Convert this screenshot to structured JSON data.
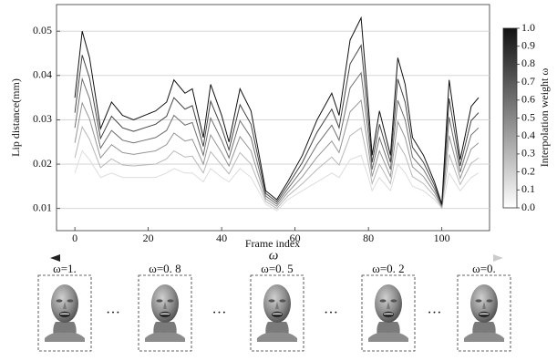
{
  "chart_data": {
    "type": "line",
    "x_label": "Frame index",
    "y_label": "Lip distance(mm)",
    "x": [
      0,
      2,
      4,
      7,
      10,
      13,
      16,
      19,
      22,
      25,
      27,
      30,
      32,
      35,
      37,
      40,
      42,
      45,
      48,
      52,
      55,
      58,
      62,
      66,
      70,
      72,
      75,
      78,
      80,
      81,
      83,
      86,
      88,
      90,
      92,
      95,
      98,
      100,
      102,
      105,
      108,
      110
    ],
    "series": [
      {
        "color": "#dcdcdc",
        "values": [
          0.018,
          0.023,
          0.021,
          0.017,
          0.018,
          0.017,
          0.017,
          0.017,
          0.017,
          0.018,
          0.019,
          0.018,
          0.018,
          0.016,
          0.019,
          0.017,
          0.016,
          0.019,
          0.017,
          0.011,
          0.0095,
          0.012,
          0.014,
          0.016,
          0.018,
          0.017,
          0.021,
          0.022,
          0.017,
          0.014,
          0.017,
          0.014,
          0.02,
          0.018,
          0.015,
          0.014,
          0.012,
          0.01,
          0.018,
          0.014,
          0.017,
          0.018
        ]
      },
      {
        "color": "#b8b8b8",
        "values": [
          0.0214,
          0.0284,
          0.0256,
          0.0192,
          0.0212,
          0.0198,
          0.0196,
          0.0198,
          0.02,
          0.0212,
          0.023,
          0.0216,
          0.0218,
          0.018,
          0.0228,
          0.0198,
          0.0178,
          0.0226,
          0.02,
          0.0116,
          0.01,
          0.0128,
          0.0156,
          0.0188,
          0.0216,
          0.0198,
          0.0264,
          0.0282,
          0.0202,
          0.0156,
          0.02,
          0.0156,
          0.0248,
          0.022,
          0.0172,
          0.0156,
          0.0128,
          0.0102,
          0.0222,
          0.0154,
          0.0202,
          0.0214
        ]
      },
      {
        "color": "#959595",
        "values": [
          0.0248,
          0.0338,
          0.0302,
          0.0214,
          0.0244,
          0.0226,
          0.0222,
          0.0226,
          0.023,
          0.0244,
          0.027,
          0.0252,
          0.0256,
          0.02,
          0.0266,
          0.0226,
          0.0196,
          0.0262,
          0.023,
          0.0122,
          0.0105,
          0.0136,
          0.0172,
          0.0216,
          0.0252,
          0.0226,
          0.0318,
          0.0344,
          0.0234,
          0.0172,
          0.023,
          0.0172,
          0.0296,
          0.026,
          0.0194,
          0.0172,
          0.0136,
          0.0104,
          0.0264,
          0.0168,
          0.0234,
          0.0248
        ]
      },
      {
        "color": "#6e6e6e",
        "values": [
          0.0282,
          0.0392,
          0.0348,
          0.0236,
          0.0276,
          0.0254,
          0.0248,
          0.0254,
          0.026,
          0.0276,
          0.031,
          0.0288,
          0.0294,
          0.022,
          0.0304,
          0.0254,
          0.0214,
          0.0298,
          0.026,
          0.0128,
          0.011,
          0.0144,
          0.0188,
          0.0244,
          0.0288,
          0.0254,
          0.0372,
          0.0406,
          0.0266,
          0.0188,
          0.026,
          0.0188,
          0.0344,
          0.03,
          0.0216,
          0.0188,
          0.0144,
          0.0106,
          0.0306,
          0.0182,
          0.0266,
          0.0282
        ]
      },
      {
        "color": "#444444",
        "values": [
          0.0316,
          0.0446,
          0.0394,
          0.0258,
          0.0308,
          0.0282,
          0.0274,
          0.0282,
          0.029,
          0.0308,
          0.035,
          0.0324,
          0.0332,
          0.024,
          0.0342,
          0.0282,
          0.0232,
          0.0334,
          0.029,
          0.0134,
          0.0115,
          0.0152,
          0.0204,
          0.0272,
          0.0324,
          0.0282,
          0.0426,
          0.0468,
          0.0298,
          0.0204,
          0.029,
          0.0204,
          0.0392,
          0.034,
          0.0238,
          0.0204,
          0.0152,
          0.0108,
          0.0348,
          0.0196,
          0.0298,
          0.0316
        ]
      },
      {
        "color": "#111111",
        "values": [
          0.035,
          0.05,
          0.044,
          0.028,
          0.034,
          0.031,
          0.03,
          0.031,
          0.032,
          0.034,
          0.039,
          0.036,
          0.037,
          0.026,
          0.038,
          0.031,
          0.025,
          0.037,
          0.032,
          0.014,
          0.012,
          0.016,
          0.022,
          0.03,
          0.036,
          0.031,
          0.048,
          0.053,
          0.033,
          0.022,
          0.032,
          0.022,
          0.044,
          0.038,
          0.026,
          0.022,
          0.016,
          0.011,
          0.039,
          0.021,
          0.033,
          0.035
        ]
      }
    ],
    "xlim": [
      -5,
      113
    ],
    "xticks": [
      0,
      20,
      40,
      60,
      80,
      100
    ],
    "ylim": [
      0.005,
      0.056
    ],
    "yticks": [
      0.01,
      0.02,
      0.03,
      0.04,
      0.05
    ],
    "grid": true,
    "colorbar": {
      "label": "Interpolation weight ω",
      "lim": [
        0,
        1
      ],
      "color_low": "#ffffff",
      "color_high": "#111111",
      "ticks": [
        {
          "value": 0,
          "label": "0.0"
        },
        {
          "value": 0.1,
          "label": "0.1"
        },
        {
          "value": 0.2,
          "label": "0.2"
        },
        {
          "value": 0.3,
          "label": "0.3"
        },
        {
          "value": 0.4,
          "label": "0.4"
        },
        {
          "value": 0.5,
          "label": "0.5"
        },
        {
          "value": 0.6,
          "label": "0.6"
        },
        {
          "value": 0.7,
          "label": "0.7"
        },
        {
          "value": 0.8,
          "label": "0.8"
        },
        {
          "value": 0.9,
          "label": "0.9"
        },
        {
          "value": 1,
          "label": "1.0"
        }
      ]
    }
  },
  "strip": {
    "axis_symbol": "ω",
    "ellipsis": "…",
    "faces": [
      "ω=1.",
      "ω=0. 8",
      "ω=0. 5",
      "ω=0. 2",
      "ω=0."
    ]
  }
}
